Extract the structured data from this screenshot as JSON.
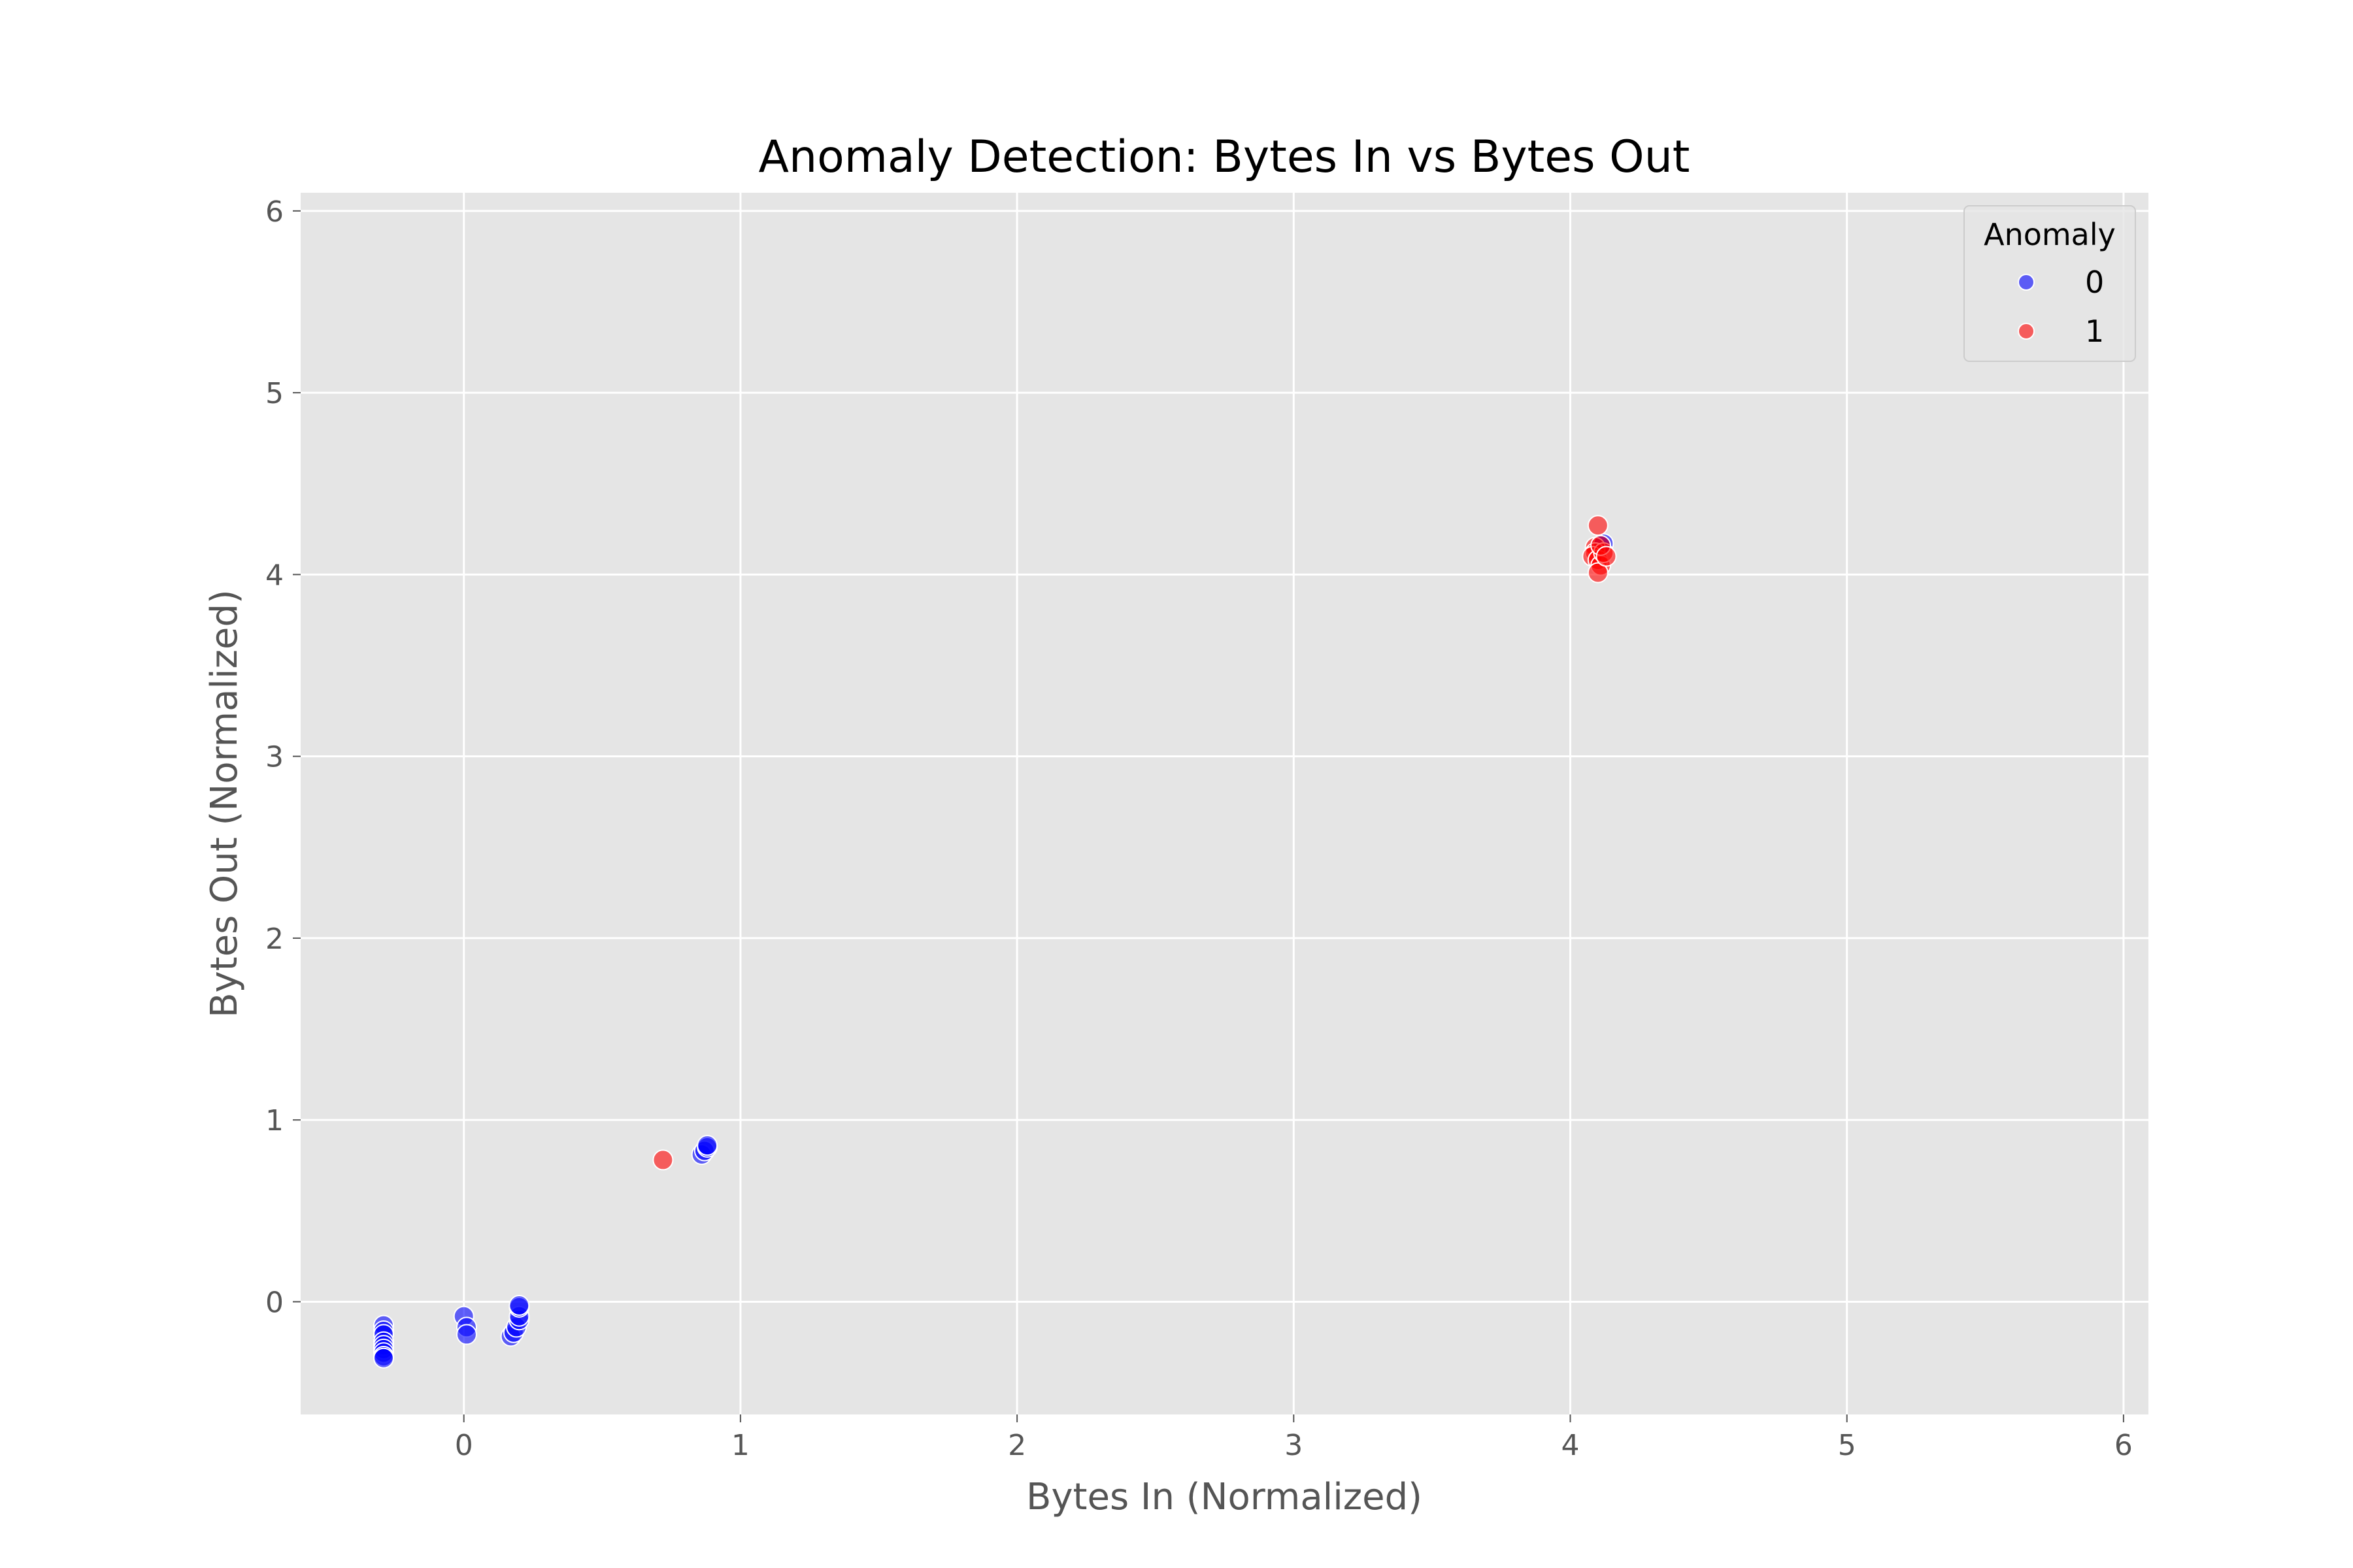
{
  "chart_data": {
    "type": "scatter",
    "title": "Anomaly Detection: Bytes In vs Bytes Out",
    "xlabel": "Bytes In (Normalized)",
    "ylabel": "Bytes Out (Normalized)",
    "xlim": [
      -0.59,
      6.09
    ],
    "ylim": [
      -0.62,
      6.1
    ],
    "xticks": [
      0,
      1,
      2,
      3,
      4,
      5,
      6
    ],
    "yticks": [
      0,
      1,
      2,
      3,
      4,
      5,
      6
    ],
    "grid": true,
    "legend": {
      "title": "Anomaly",
      "position": "top-right"
    },
    "colors": {
      "background": "#e5e5e5",
      "grid": "#ffffff"
    },
    "series": [
      {
        "name": "0",
        "color": "#0000ff",
        "points": [
          [
            -0.29,
            -0.13
          ],
          [
            -0.29,
            -0.16
          ],
          [
            -0.29,
            -0.18
          ],
          [
            -0.29,
            -0.22
          ],
          [
            -0.29,
            -0.24
          ],
          [
            -0.29,
            -0.26
          ],
          [
            -0.29,
            -0.28
          ],
          [
            -0.29,
            -0.3
          ],
          [
            -0.29,
            -0.31
          ],
          [
            0.0,
            -0.08
          ],
          [
            0.01,
            -0.14
          ],
          [
            0.01,
            -0.18
          ],
          [
            0.17,
            -0.19
          ],
          [
            0.18,
            -0.17
          ],
          [
            0.19,
            -0.14
          ],
          [
            0.2,
            -0.1
          ],
          [
            0.2,
            -0.08
          ],
          [
            0.2,
            -0.03
          ],
          [
            0.2,
            -0.02
          ],
          [
            0.86,
            0.81
          ],
          [
            0.87,
            0.83
          ],
          [
            0.88,
            0.85
          ],
          [
            0.88,
            0.86
          ],
          [
            4.11,
            4.16
          ],
          [
            4.12,
            4.17
          ]
        ]
      },
      {
        "name": "1",
        "color": "#ff0000",
        "points": [
          [
            0.72,
            0.78
          ],
          [
            4.1,
            4.27
          ],
          [
            4.09,
            4.15
          ],
          [
            4.09,
            4.12
          ],
          [
            4.08,
            4.1
          ],
          [
            4.1,
            4.08
          ],
          [
            4.11,
            4.05
          ],
          [
            4.1,
            4.01
          ],
          [
            4.12,
            4.12
          ],
          [
            4.11,
            4.16
          ],
          [
            4.13,
            4.1
          ]
        ]
      }
    ]
  }
}
